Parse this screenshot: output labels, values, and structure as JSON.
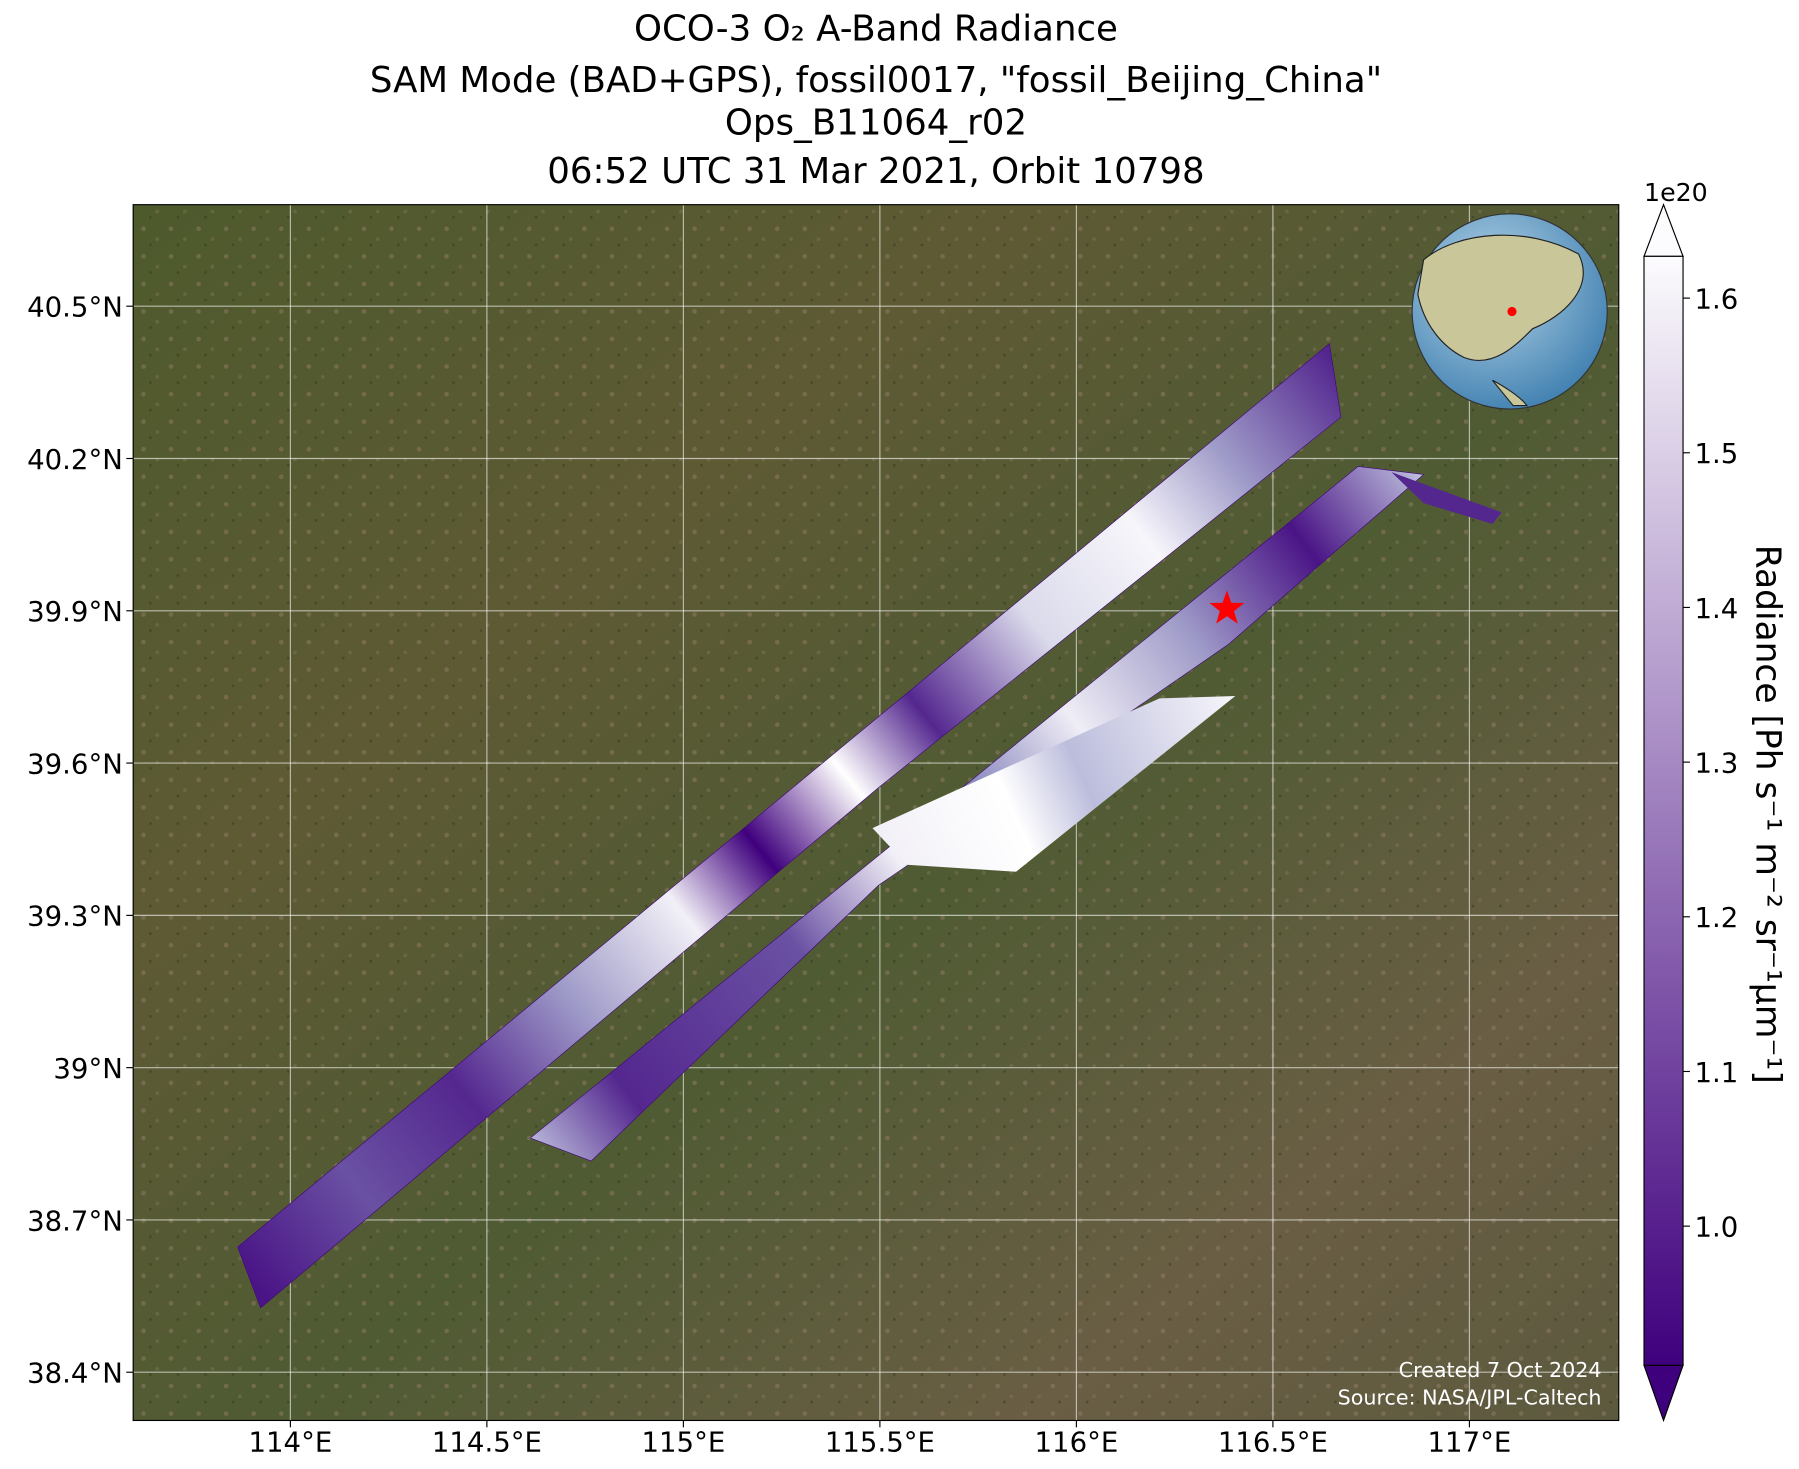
{
  "chart_data": {
    "type": "map",
    "title": [
      "OCO-3 O₂ A-Band Radiance",
      "SAM Mode (BAD+GPS), fossil0017, \"fossil_Beijing_China\"",
      "Ops_B11064_r02",
      "06:52 UTC 31 Mar 2021, Orbit 10798"
    ],
    "xlim": [
      113.6,
      117.38
    ],
    "ylim": [
      38.305,
      40.7
    ],
    "xticks": [
      {
        "value": 114,
        "label": "114°E"
      },
      {
        "value": 114.5,
        "label": "114.5°E"
      },
      {
        "value": 115,
        "label": "115°E"
      },
      {
        "value": 115.5,
        "label": "115.5°E"
      },
      {
        "value": 116,
        "label": "116°E"
      },
      {
        "value": 116.5,
        "label": "116.5°E"
      },
      {
        "value": 117,
        "label": "117°E"
      }
    ],
    "yticks": [
      {
        "value": 38.4,
        "label": "38.4°N"
      },
      {
        "value": 38.7,
        "label": "38.7°N"
      },
      {
        "value": 39,
        "label": "39°N"
      },
      {
        "value": 39.3,
        "label": "39.3°N"
      },
      {
        "value": 39.6,
        "label": "39.6°N"
      },
      {
        "value": 39.9,
        "label": "39.9°N"
      },
      {
        "value": 40.2,
        "label": "40.2°N"
      },
      {
        "value": 40.5,
        "label": "40.5°N"
      }
    ],
    "grid": true,
    "target": {
      "lon": 116.383,
      "lat": 39.904,
      "color": "#ff0000"
    },
    "colorbar": {
      "label": "Radiance [Ph s⁻¹ m⁻² sr⁻¹μm⁻¹]",
      "offset_label": "1e20",
      "lim": [
        0.91,
        1.627
      ],
      "ticks": [
        {
          "value": 1,
          "label": "1.0"
        },
        1.1,
        1.2,
        1.3,
        1.4,
        1.5,
        1.6
      ],
      "colors": [
        "#3f007d",
        "#fcfbfd"
      ]
    },
    "credits": [
      "Created 7 Oct 2024",
      "Source: NASA/JPL-Caltech"
    ]
  }
}
